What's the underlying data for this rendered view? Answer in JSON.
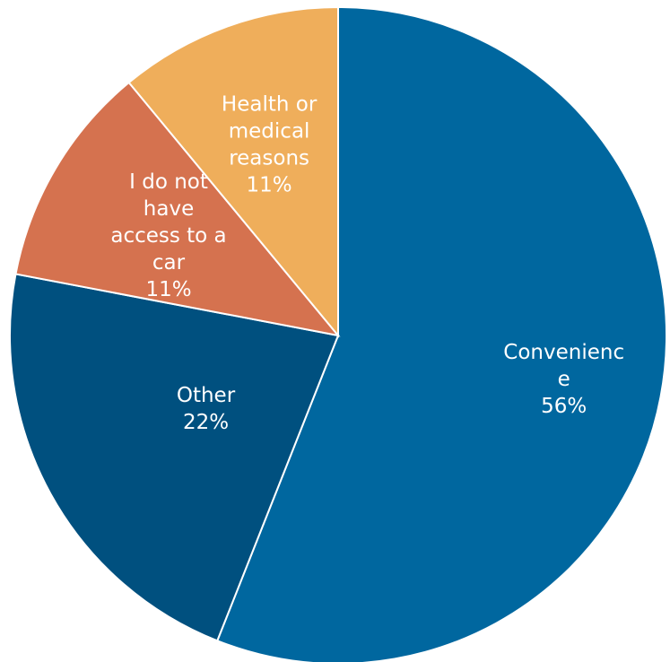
{
  "chart_data": {
    "type": "pie",
    "title": "",
    "start_angle_deg": 0,
    "direction": "clockwise",
    "slices": [
      {
        "category_lines": [
          "Convenienc",
          "e"
        ],
        "value": 56,
        "value_label": "56%",
        "color": "#00679f"
      },
      {
        "category_lines": [
          "Other"
        ],
        "value": 22,
        "value_label": "22%",
        "color": "#00507f"
      },
      {
        "category_lines": [
          "I do not",
          "have",
          "access to a",
          "car"
        ],
        "value": 11,
        "value_label": "11%",
        "color": "#d5724f"
      },
      {
        "category_lines": [
          "Health or",
          "medical",
          "reasons"
        ],
        "value": 11,
        "value_label": "11%",
        "color": "#efae5b"
      }
    ]
  }
}
